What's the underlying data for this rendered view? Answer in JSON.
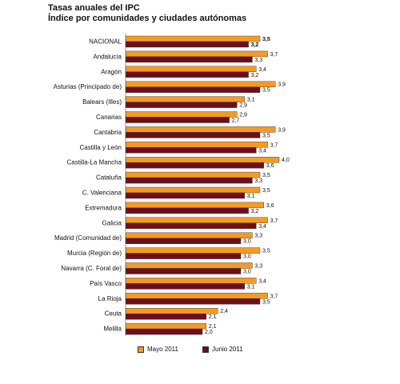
{
  "header": {
    "title": "Tasas anuales del IPC",
    "subtitle": "Índice por comunidades y ciudades autónomas"
  },
  "chart_data": {
    "type": "bar",
    "orientation": "horizontal",
    "title": "Tasas anuales del IPC",
    "subtitle": "Índice por comunidades y ciudades autónomas",
    "xlabel": "",
    "ylabel": "",
    "xlim": [
      0,
      4.0
    ],
    "grid": false,
    "legend_position": "bottom",
    "categories": [
      "NACIONAL",
      "Andalucía",
      "Aragón",
      "Asturias (Principado de)",
      "Balears (Illes)",
      "Canarias",
      "Cantabria",
      "Castilla y León",
      "Castilla-La Mancha",
      "Cataluña",
      "C. Valenciana",
      "Extremadura",
      "Galicia",
      "Madrid (Comunidad de)",
      "Murcia (Región de)",
      "Navarra (C. Foral de)",
      "País Vasco",
      "La Rioja",
      "Ceuta",
      "Melilla"
    ],
    "series": [
      {
        "name": "Mayo 2011",
        "color": "#F59A23",
        "values": [
          3.5,
          3.7,
          3.4,
          3.9,
          3.1,
          2.9,
          3.9,
          3.7,
          4.0,
          3.5,
          3.5,
          3.6,
          3.7,
          3.3,
          3.5,
          3.3,
          3.4,
          3.7,
          2.4,
          2.1
        ],
        "labels": [
          "3,5",
          "3,7",
          "3,4",
          "3,9",
          "3,1",
          "2,9",
          "3,9",
          "3,7",
          "4,0",
          "3,5",
          "3,5",
          "3,6",
          "3,7",
          "3,3",
          "3,5",
          "3,3",
          "3,4",
          "3,7",
          "2,4",
          "2,1"
        ]
      },
      {
        "name": "Junio 2011",
        "color": "#6B0F1A",
        "values": [
          3.2,
          3.3,
          3.2,
          3.5,
          2.9,
          2.7,
          3.5,
          3.4,
          3.6,
          3.3,
          3.1,
          3.2,
          3.4,
          3.0,
          3.0,
          3.0,
          3.1,
          3.5,
          2.1,
          2.0
        ],
        "labels": [
          "3,2",
          "3,3",
          "3,2",
          "3,5",
          "2,9",
          "2,7",
          "3,5",
          "3,4",
          "3,6",
          "3,3",
          "3,1",
          "3,2",
          "3,4",
          "3,0",
          "3,0",
          "3,0",
          "3,1",
          "3,5",
          "2,1",
          "2,0"
        ]
      }
    ]
  }
}
